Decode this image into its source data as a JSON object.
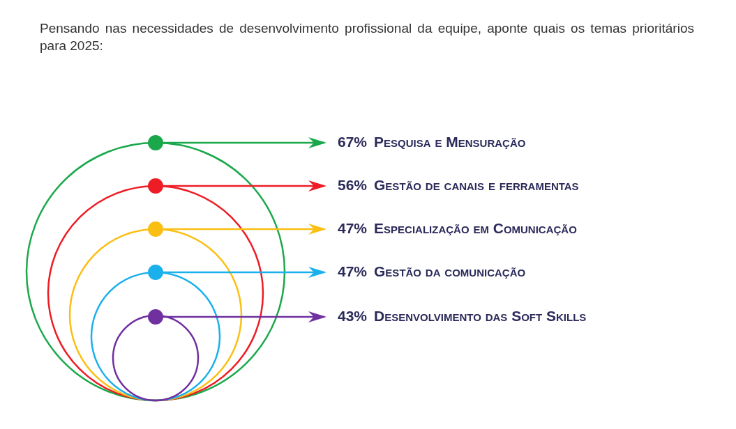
{
  "chart_data": {
    "type": "other",
    "title": "Pensando nas necessidades de desenvolvimento profissional da equipe, aponte quais os temas prioritários para 2025:",
    "categories": [
      "Pesquisa e Mensuração",
      "Gestão de canais e ferramentas",
      "Especialização em Comunicação",
      "Gestão da comunicação",
      "Desenvolvimento das Soft Skills"
    ],
    "values": [
      67,
      56,
      47,
      47,
      43
    ],
    "value_labels": [
      "67%",
      "56%",
      "47%",
      "47%",
      "43%"
    ],
    "colors": [
      "#1aa84b",
      "#ee1c24",
      "#fbbf14",
      "#1ab0ec",
      "#7030a0"
    ],
    "data_labels": true
  }
}
